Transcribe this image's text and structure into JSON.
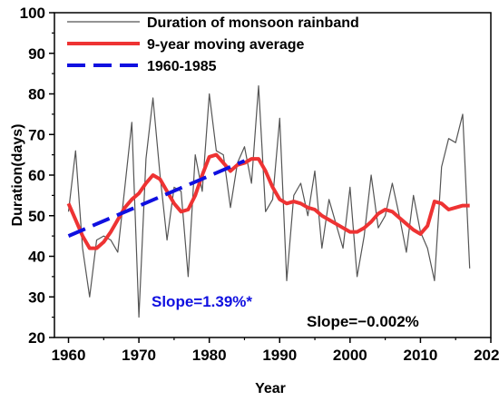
{
  "chart_data": {
    "type": "line",
    "title": "",
    "xlabel": "Year",
    "ylabel": "Duration(days)",
    "xlim": [
      1958,
      2020
    ],
    "ylim": [
      20,
      100
    ],
    "x_ticks": [
      "1960",
      "1970",
      "1980",
      "1990",
      "2000",
      "2010",
      "2020"
    ],
    "y_ticks": [
      "20",
      "30",
      "40",
      "50",
      "60",
      "70",
      "80",
      "90",
      "100"
    ],
    "grid": false,
    "legend_position": "top-left",
    "series": [
      {
        "name": "Duration of monsoon rainband",
        "color": "#555555",
        "style": "thin-solid",
        "x": [
          1960,
          1961,
          1962,
          1963,
          1964,
          1965,
          1966,
          1967,
          1968,
          1969,
          1970,
          1971,
          1972,
          1973,
          1974,
          1975,
          1976,
          1977,
          1978,
          1979,
          1980,
          1981,
          1982,
          1983,
          1984,
          1985,
          1986,
          1987,
          1988,
          1989,
          1990,
          1991,
          1992,
          1993,
          1994,
          1995,
          1996,
          1997,
          1998,
          1999,
          2000,
          2001,
          2002,
          2003,
          2004,
          2005,
          2006,
          2007,
          2008,
          2009,
          2010,
          2011,
          2012,
          2013,
          2014,
          2015,
          2016,
          2017
        ],
        "y": [
          51,
          66,
          42,
          30,
          44,
          45,
          44,
          41,
          57,
          73,
          25,
          64,
          79,
          60,
          44,
          57,
          56,
          35,
          65,
          56,
          80,
          66,
          65,
          52,
          63,
          67,
          58,
          82,
          51,
          54,
          74,
          34,
          55,
          58,
          50,
          61,
          42,
          54,
          48,
          42,
          57,
          35,
          45,
          60,
          47,
          50,
          58,
          50,
          41,
          55,
          46,
          42,
          34,
          62,
          69,
          68,
          75,
          37
        ]
      },
      {
        "name": "9-year moving average",
        "color": "#ee3333",
        "style": "thick-solid",
        "x": [
          1960,
          1961,
          1962,
          1963,
          1964,
          1965,
          1966,
          1967,
          1968,
          1969,
          1970,
          1971,
          1972,
          1973,
          1974,
          1975,
          1976,
          1977,
          1978,
          1979,
          1980,
          1981,
          1982,
          1983,
          1984,
          1985,
          1986,
          1987,
          1988,
          1989,
          1990,
          1991,
          1992,
          1993,
          1994,
          1995,
          1996,
          1997,
          1998,
          1999,
          2000,
          2001,
          2002,
          2003,
          2004,
          2005,
          2006,
          2007,
          2008,
          2009,
          2010,
          2011,
          2012,
          2013,
          2014,
          2015,
          2016,
          2017
        ],
        "y": [
          53,
          49,
          45,
          42,
          42,
          43.5,
          46,
          49,
          52,
          54,
          55.5,
          58,
          60,
          59,
          56,
          53,
          51,
          51.5,
          55,
          60,
          64.5,
          65,
          63,
          61,
          62.5,
          63,
          64,
          64,
          61,
          57,
          54,
          53,
          53.5,
          53,
          52,
          51.5,
          50,
          49,
          48,
          47,
          46,
          46,
          47,
          48.5,
          50.5,
          51.5,
          51,
          49.5,
          48,
          46.5,
          45.5,
          47.5,
          53.5,
          53,
          51.5,
          52,
          52.5,
          52.5
        ]
      },
      {
        "name": "1960-1985",
        "color": "#1010e0",
        "style": "dashed",
        "x": [
          1960,
          1985
        ],
        "y": [
          45,
          63.5
        ]
      }
    ],
    "annotations": [
      {
        "text": "Slope=1.39%*",
        "color": "#1010e0"
      },
      {
        "text": "Slope=−0.002%",
        "color": "#000000"
      }
    ]
  }
}
